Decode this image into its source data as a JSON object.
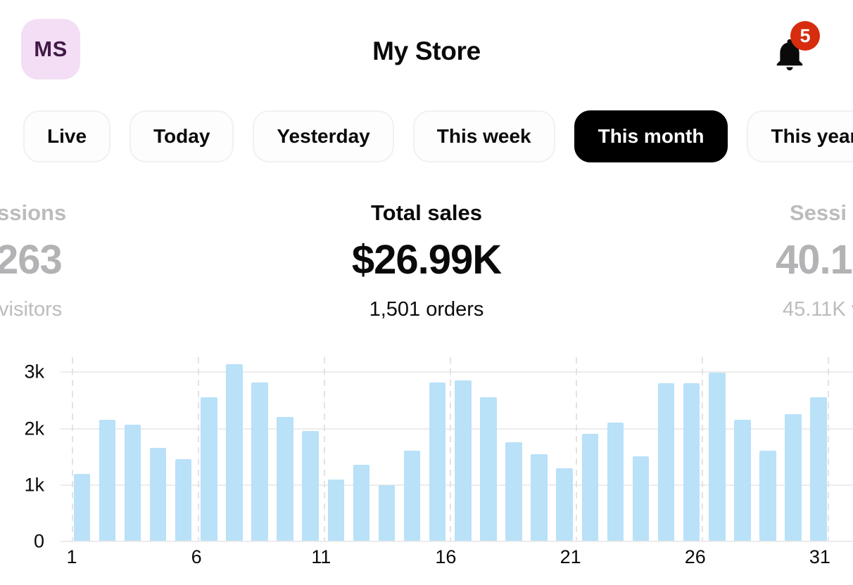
{
  "header": {
    "avatar_initials": "MS",
    "title": "My Store",
    "notification_count": "5"
  },
  "tabs": {
    "items": [
      {
        "label": "Live",
        "selected": false
      },
      {
        "label": "Today",
        "selected": false
      },
      {
        "label": "Yesterday",
        "selected": false
      },
      {
        "label": "This week",
        "selected": false
      },
      {
        "label": "This month",
        "selected": true
      },
      {
        "label": "This year",
        "selected": false
      }
    ]
  },
  "stats": {
    "left_card_clipped": {
      "label_fragment": "ssions",
      "value_fragment": "263",
      "sub_fragment": "visitors"
    },
    "center_card": {
      "label": "Total sales",
      "value": "$26.99K",
      "sub": "1,501 orders"
    },
    "right_card_clipped": {
      "label_fragment": "Sessi",
      "value_fragment": "40.1",
      "sub_fragment": "45.11K v"
    }
  },
  "chart_data": {
    "type": "bar",
    "title": "",
    "first_day": 1,
    "x_axis_max": 31,
    "values": [
      1190,
      2140,
      2060,
      1640,
      1450,
      2550,
      3130,
      2800,
      2200,
      1950,
      1090,
      1350,
      990,
      1600,
      2800,
      2840,
      2540,
      1750,
      1540,
      1290,
      1890,
      2090,
      1500,
      2790,
      2790,
      2980,
      2150,
      1590,
      2240,
      2540
    ],
    "x_ticks": [
      1,
      6,
      11,
      16,
      21,
      26,
      31
    ],
    "y_ticks": [
      "0",
      "1k",
      "2k",
      "3k"
    ],
    "ylim": [
      0,
      3300
    ],
    "grid": true,
    "legend": false,
    "bar_color": "#b9e1f8"
  },
  "colors": {
    "accent_selected_tab": "#000000",
    "badge_red": "#d72c0d",
    "bar_blue": "#b9e1f8",
    "avatar_bg": "#f3def5",
    "avatar_fg": "#411a46",
    "muted_gray_text": "#b5b5b5"
  }
}
